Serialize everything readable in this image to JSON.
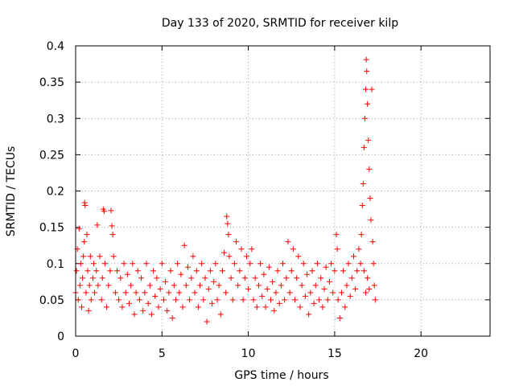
{
  "chart_data": {
    "type": "scatter",
    "title": "Day 133 of 2020, SRMTID for receiver kilp",
    "xlabel": "GPS time / hours",
    "ylabel": "SRMTID / TECUs",
    "xlim": [
      0,
      24
    ],
    "ylim": [
      0,
      0.4
    ],
    "xticks": [
      "0",
      "5",
      "10",
      "15",
      "20"
    ],
    "yticks": [
      "0",
      "0.05",
      "0.1",
      "0.15",
      "0.2",
      "0.25",
      "0.3",
      "0.35",
      "0.4"
    ],
    "grid": true,
    "marker": "+",
    "color": "#ff0000",
    "series": [
      {
        "points": [
          [
            0.0,
            0.06
          ],
          [
            0.05,
            0.09
          ],
          [
            0.1,
            0.12
          ],
          [
            0.15,
            0.05
          ],
          [
            0.2,
            0.148
          ],
          [
            0.25,
            0.07
          ],
          [
            0.3,
            0.1
          ],
          [
            0.35,
            0.04
          ],
          [
            0.4,
            0.08
          ],
          [
            0.45,
            0.11
          ],
          [
            0.5,
            0.13
          ],
          [
            0.52,
            0.184
          ],
          [
            0.55,
            0.18
          ],
          [
            0.6,
            0.06
          ],
          [
            0.65,
            0.14
          ],
          [
            0.7,
            0.09
          ],
          [
            0.75,
            0.035
          ],
          [
            0.8,
            0.07
          ],
          [
            0.85,
            0.11
          ],
          [
            0.9,
            0.05
          ],
          [
            1.0,
            0.08
          ],
          [
            1.05,
            0.1
          ],
          [
            1.1,
            0.06
          ],
          [
            1.2,
            0.09
          ],
          [
            1.25,
            0.153
          ],
          [
            1.3,
            0.07
          ],
          [
            1.4,
            0.11
          ],
          [
            1.5,
            0.05
          ],
          [
            1.55,
            0.08
          ],
          [
            1.6,
            0.175
          ],
          [
            1.65,
            0.172
          ],
          [
            1.7,
            0.1
          ],
          [
            1.8,
            0.04
          ],
          [
            1.9,
            0.07
          ],
          [
            2.0,
            0.09
          ],
          [
            2.05,
            0.173
          ],
          [
            2.1,
            0.152
          ],
          [
            2.15,
            0.14
          ],
          [
            2.2,
            0.11
          ],
          [
            2.3,
            0.06
          ],
          [
            2.4,
            0.09
          ],
          [
            2.5,
            0.05
          ],
          [
            2.6,
            0.08
          ],
          [
            2.7,
            0.04
          ],
          [
            2.8,
            0.1
          ],
          [
            2.9,
            0.06
          ],
          [
            3.0,
            0.085
          ],
          [
            3.1,
            0.045
          ],
          [
            3.2,
            0.07
          ],
          [
            3.3,
            0.1
          ],
          [
            3.4,
            0.03
          ],
          [
            3.5,
            0.06
          ],
          [
            3.6,
            0.09
          ],
          [
            3.7,
            0.05
          ],
          [
            3.8,
            0.08
          ],
          [
            3.9,
            0.035
          ],
          [
            4.0,
            0.06
          ],
          [
            4.1,
            0.1
          ],
          [
            4.2,
            0.045
          ],
          [
            4.3,
            0.07
          ],
          [
            4.4,
            0.03
          ],
          [
            4.5,
            0.09
          ],
          [
            4.6,
            0.055
          ],
          [
            4.7,
            0.08
          ],
          [
            4.8,
            0.04
          ],
          [
            4.9,
            0.065
          ],
          [
            5.0,
            0.1
          ],
          [
            5.1,
            0.05
          ],
          [
            5.2,
            0.075
          ],
          [
            5.3,
            0.035
          ],
          [
            5.4,
            0.06
          ],
          [
            5.5,
            0.09
          ],
          [
            5.6,
            0.025
          ],
          [
            5.7,
            0.07
          ],
          [
            5.8,
            0.05
          ],
          [
            5.9,
            0.1
          ],
          [
            6.0,
            0.06
          ],
          [
            6.1,
            0.085
          ],
          [
            6.2,
            0.04
          ],
          [
            6.3,
            0.125
          ],
          [
            6.4,
            0.07
          ],
          [
            6.5,
            0.095
          ],
          [
            6.6,
            0.05
          ],
          [
            6.7,
            0.08
          ],
          [
            6.8,
            0.11
          ],
          [
            6.9,
            0.06
          ],
          [
            7.0,
            0.09
          ],
          [
            7.1,
            0.04
          ],
          [
            7.2,
            0.07
          ],
          [
            7.3,
            0.1
          ],
          [
            7.4,
            0.05
          ],
          [
            7.5,
            0.08
          ],
          [
            7.6,
            0.02
          ],
          [
            7.7,
            0.065
          ],
          [
            7.8,
            0.09
          ],
          [
            7.9,
            0.045
          ],
          [
            8.0,
            0.075
          ],
          [
            8.1,
            0.1
          ],
          [
            8.2,
            0.05
          ],
          [
            8.3,
            0.07
          ],
          [
            8.4,
            0.03
          ],
          [
            8.5,
            0.09
          ],
          [
            8.6,
            0.115
          ],
          [
            8.7,
            0.06
          ],
          [
            8.75,
            0.165
          ],
          [
            8.8,
            0.155
          ],
          [
            8.85,
            0.14
          ],
          [
            8.9,
            0.11
          ],
          [
            9.0,
            0.08
          ],
          [
            9.1,
            0.05
          ],
          [
            9.2,
            0.1
          ],
          [
            9.3,
            0.13
          ],
          [
            9.4,
            0.07
          ],
          [
            9.5,
            0.09
          ],
          [
            9.6,
            0.12
          ],
          [
            9.7,
            0.05
          ],
          [
            9.8,
            0.08
          ],
          [
            9.9,
            0.11
          ],
          [
            10.0,
            0.065
          ],
          [
            10.1,
            0.1
          ],
          [
            10.2,
            0.12
          ],
          [
            10.3,
            0.05
          ],
          [
            10.4,
            0.08
          ],
          [
            10.5,
            0.04
          ],
          [
            10.6,
            0.07
          ],
          [
            10.7,
            0.1
          ],
          [
            10.8,
            0.055
          ],
          [
            10.9,
            0.085
          ],
          [
            11.0,
            0.04
          ],
          [
            11.1,
            0.065
          ],
          [
            11.2,
            0.095
          ],
          [
            11.3,
            0.05
          ],
          [
            11.4,
            0.075
          ],
          [
            11.5,
            0.035
          ],
          [
            11.6,
            0.06
          ],
          [
            11.7,
            0.09
          ],
          [
            11.8,
            0.045
          ],
          [
            11.9,
            0.07
          ],
          [
            12.0,
            0.1
          ],
          [
            12.1,
            0.05
          ],
          [
            12.2,
            0.08
          ],
          [
            12.3,
            0.13
          ],
          [
            12.4,
            0.06
          ],
          [
            12.5,
            0.09
          ],
          [
            12.6,
            0.12
          ],
          [
            12.7,
            0.05
          ],
          [
            12.8,
            0.08
          ],
          [
            12.9,
            0.11
          ],
          [
            13.0,
            0.04
          ],
          [
            13.1,
            0.07
          ],
          [
            13.2,
            0.1
          ],
          [
            13.3,
            0.055
          ],
          [
            13.4,
            0.085
          ],
          [
            13.5,
            0.03
          ],
          [
            13.6,
            0.06
          ],
          [
            13.7,
            0.09
          ],
          [
            13.8,
            0.045
          ],
          [
            13.9,
            0.07
          ],
          [
            14.0,
            0.1
          ],
          [
            14.1,
            0.05
          ],
          [
            14.2,
            0.08
          ],
          [
            14.3,
            0.04
          ],
          [
            14.4,
            0.065
          ],
          [
            14.5,
            0.095
          ],
          [
            14.6,
            0.05
          ],
          [
            14.7,
            0.075
          ],
          [
            14.8,
            0.1
          ],
          [
            14.9,
            0.06
          ],
          [
            15.0,
            0.09
          ],
          [
            15.1,
            0.14
          ],
          [
            15.15,
            0.12
          ],
          [
            15.2,
            0.05
          ],
          [
            15.3,
            0.025
          ],
          [
            15.4,
            0.06
          ],
          [
            15.5,
            0.09
          ],
          [
            15.6,
            0.04
          ],
          [
            15.7,
            0.07
          ],
          [
            15.8,
            0.1
          ],
          [
            15.9,
            0.055
          ],
          [
            16.0,
            0.08
          ],
          [
            16.1,
            0.11
          ],
          [
            16.2,
            0.065
          ],
          [
            16.3,
            0.09
          ],
          [
            16.4,
            0.12
          ],
          [
            16.5,
            0.1
          ],
          [
            16.55,
            0.14
          ],
          [
            16.6,
            0.18
          ],
          [
            16.65,
            0.21
          ],
          [
            16.7,
            0.26
          ],
          [
            16.75,
            0.3
          ],
          [
            16.8,
            0.34
          ],
          [
            16.83,
            0.381
          ],
          [
            16.86,
            0.365
          ],
          [
            16.9,
            0.32
          ],
          [
            16.95,
            0.27
          ],
          [
            17.0,
            0.23
          ],
          [
            17.05,
            0.19
          ],
          [
            17.1,
            0.16
          ],
          [
            17.15,
            0.34
          ],
          [
            17.2,
            0.13
          ],
          [
            17.25,
            0.1
          ],
          [
            17.3,
            0.07
          ],
          [
            17.35,
            0.05
          ],
          [
            16.9,
            0.08
          ],
          [
            17.0,
            0.065
          ],
          [
            16.7,
            0.09
          ],
          [
            16.8,
            0.06
          ]
        ]
      }
    ]
  }
}
